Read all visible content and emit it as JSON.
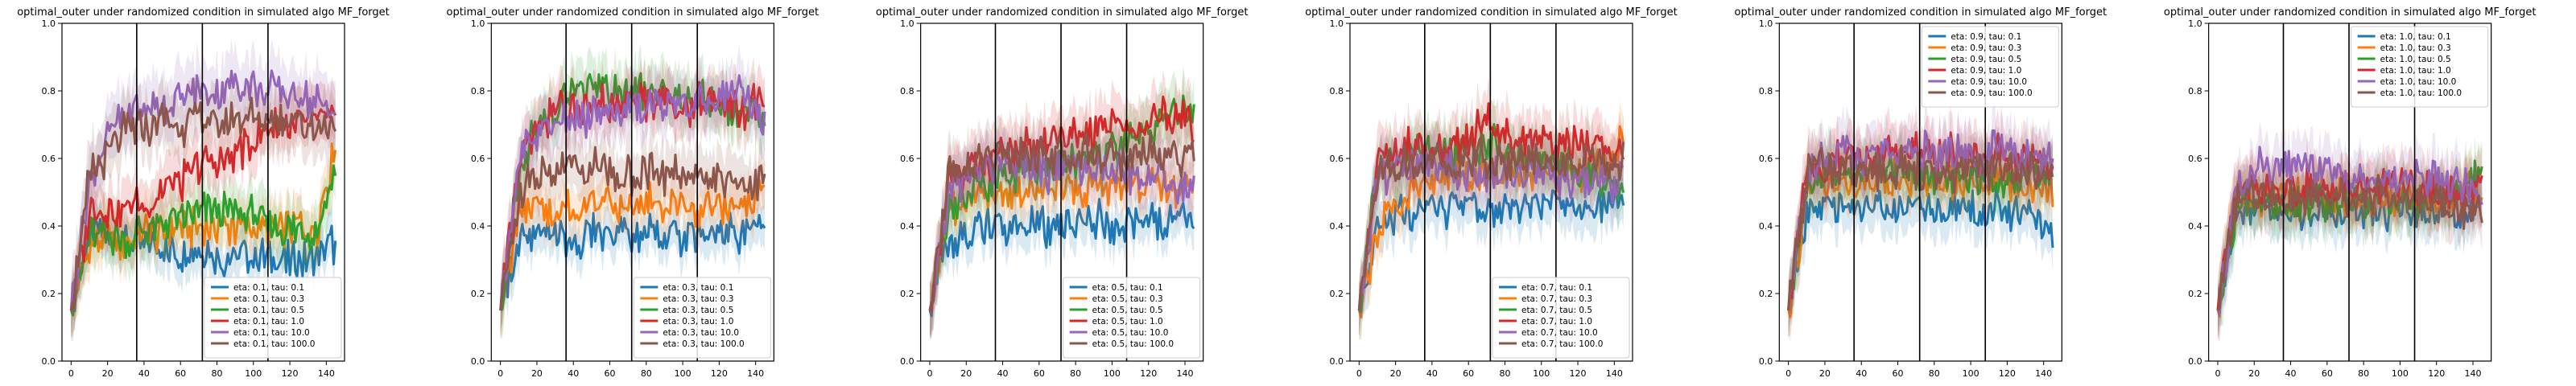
{
  "chart_data": [
    {
      "type": "line",
      "title": "optimal_outer under randomized condition in simulated algo MF_forget",
      "xlim": [
        -5,
        150
      ],
      "ylim": [
        0,
        1
      ],
      "xticks": [
        0,
        20,
        40,
        60,
        80,
        100,
        120,
        140
      ],
      "yticks": [
        0.0,
        0.2,
        0.4,
        0.6,
        0.8,
        1.0
      ],
      "vlines": [
        36,
        72,
        108
      ],
      "legend_loc": "lower-right",
      "series": [
        {
          "name": "eta: 0.1, tau: 0.1",
          "color": "#1f77b4",
          "band": 0.07,
          "values": [
            0.15,
            0.38,
            0.36,
            0.35,
            0.35,
            0.33,
            0.32,
            0.33,
            0.31,
            0.31,
            0.32,
            0.3,
            0.29,
            0.32,
            0.35
          ]
        },
        {
          "name": "eta: 0.1, tau: 0.3",
          "color": "#ff7f0e",
          "band": 0.08,
          "values": [
            0.15,
            0.34,
            0.36,
            0.35,
            0.38,
            0.38,
            0.4,
            0.39,
            0.4,
            0.4,
            0.4,
            0.38,
            0.4,
            0.38,
            0.65
          ]
        },
        {
          "name": "eta: 0.1, tau: 0.5",
          "color": "#2ca02c",
          "band": 0.09,
          "values": [
            0.15,
            0.38,
            0.37,
            0.36,
            0.39,
            0.42,
            0.42,
            0.44,
            0.44,
            0.45,
            0.42,
            0.4,
            0.39,
            0.38,
            0.56
          ]
        },
        {
          "name": "eta: 0.1, tau: 1.0",
          "color": "#d62728",
          "band": 0.09,
          "values": [
            0.15,
            0.44,
            0.45,
            0.45,
            0.46,
            0.52,
            0.54,
            0.58,
            0.6,
            0.63,
            0.66,
            0.7,
            0.7,
            0.72,
            0.72
          ]
        },
        {
          "name": "eta: 0.1, tau: 10.0",
          "color": "#9467bd",
          "band": 0.1,
          "values": [
            0.15,
            0.54,
            0.67,
            0.74,
            0.75,
            0.76,
            0.78,
            0.8,
            0.8,
            0.82,
            0.8,
            0.8,
            0.78,
            0.77,
            0.75
          ]
        },
        {
          "name": "eta: 0.1, tau: 100.0",
          "color": "#8c564b",
          "band": 0.1,
          "values": [
            0.15,
            0.55,
            0.62,
            0.68,
            0.69,
            0.72,
            0.7,
            0.72,
            0.7,
            0.72,
            0.72,
            0.72,
            0.71,
            0.7,
            0.7
          ]
        }
      ]
    },
    {
      "type": "line",
      "title": "optimal_outer under randomized condition in simulated algo MF_forget",
      "xlim": [
        -5,
        150
      ],
      "ylim": [
        0,
        1
      ],
      "xticks": [
        0,
        20,
        40,
        60,
        80,
        100,
        120,
        140
      ],
      "yticks": [
        0.0,
        0.2,
        0.4,
        0.6,
        0.8,
        1.0
      ],
      "vlines": [
        36,
        72,
        108
      ],
      "legend_loc": "lower-right",
      "series": [
        {
          "name": "eta: 0.3, tau: 0.1",
          "color": "#1f77b4",
          "band": 0.07,
          "values": [
            0.15,
            0.36,
            0.38,
            0.37,
            0.36,
            0.38,
            0.38,
            0.37,
            0.38,
            0.38,
            0.37,
            0.36,
            0.38,
            0.37,
            0.38
          ]
        },
        {
          "name": "eta: 0.3, tau: 0.3",
          "color": "#ff7f0e",
          "band": 0.08,
          "values": [
            0.15,
            0.44,
            0.46,
            0.45,
            0.44,
            0.47,
            0.46,
            0.46,
            0.47,
            0.47,
            0.46,
            0.45,
            0.46,
            0.47,
            0.5
          ]
        },
        {
          "name": "eta: 0.3, tau: 0.5",
          "color": "#2ca02c",
          "band": 0.09,
          "values": [
            0.15,
            0.58,
            0.7,
            0.76,
            0.8,
            0.82,
            0.8,
            0.79,
            0.8,
            0.78,
            0.77,
            0.78,
            0.76,
            0.74,
            0.72
          ]
        },
        {
          "name": "eta: 0.3, tau: 1.0",
          "color": "#d62728",
          "band": 0.09,
          "values": [
            0.15,
            0.6,
            0.7,
            0.74,
            0.76,
            0.76,
            0.76,
            0.78,
            0.76,
            0.77,
            0.76,
            0.77,
            0.76,
            0.75,
            0.78
          ]
        },
        {
          "name": "eta: 0.3, tau: 10.0",
          "color": "#9467bd",
          "band": 0.09,
          "values": [
            0.15,
            0.62,
            0.68,
            0.7,
            0.71,
            0.72,
            0.73,
            0.74,
            0.75,
            0.76,
            0.76,
            0.77,
            0.78,
            0.79,
            0.72
          ]
        },
        {
          "name": "eta: 0.3, tau: 100.0",
          "color": "#8c564b",
          "band": 0.09,
          "values": [
            0.15,
            0.5,
            0.56,
            0.58,
            0.56,
            0.58,
            0.56,
            0.55,
            0.55,
            0.56,
            0.54,
            0.55,
            0.54,
            0.52,
            0.52
          ]
        }
      ]
    },
    {
      "type": "line",
      "title": "optimal_outer under randomized condition in simulated algo MF_forget",
      "xlim": [
        -5,
        150
      ],
      "ylim": [
        0,
        1
      ],
      "xticks": [
        0,
        20,
        40,
        60,
        80,
        100,
        120,
        140
      ],
      "yticks": [
        0.0,
        0.2,
        0.4,
        0.6,
        0.8,
        1.0
      ],
      "vlines": [
        36,
        72,
        108
      ],
      "legend_loc": "lower-right",
      "series": [
        {
          "name": "eta: 0.5, tau: 0.1",
          "color": "#1f77b4",
          "band": 0.07,
          "values": [
            0.15,
            0.36,
            0.38,
            0.4,
            0.39,
            0.4,
            0.4,
            0.41,
            0.4,
            0.42,
            0.41,
            0.4,
            0.42,
            0.41,
            0.42
          ]
        },
        {
          "name": "eta: 0.5, tau: 0.3",
          "color": "#ff7f0e",
          "band": 0.08,
          "values": [
            0.15,
            0.46,
            0.48,
            0.5,
            0.5,
            0.5,
            0.51,
            0.52,
            0.51,
            0.52,
            0.52,
            0.51,
            0.52,
            0.52,
            0.54
          ]
        },
        {
          "name": "eta: 0.5, tau: 0.5",
          "color": "#2ca02c",
          "band": 0.09,
          "values": [
            0.15,
            0.44,
            0.5,
            0.52,
            0.54,
            0.56,
            0.57,
            0.6,
            0.6,
            0.62,
            0.64,
            0.66,
            0.7,
            0.74,
            0.72
          ]
        },
        {
          "name": "eta: 0.5, tau: 1.0",
          "color": "#d62728",
          "band": 0.09,
          "values": [
            0.15,
            0.54,
            0.58,
            0.6,
            0.62,
            0.64,
            0.64,
            0.66,
            0.68,
            0.7,
            0.7,
            0.7,
            0.72,
            0.72,
            0.7
          ]
        },
        {
          "name": "eta: 0.5, tau: 10.0",
          "color": "#9467bd",
          "band": 0.09,
          "values": [
            0.15,
            0.5,
            0.55,
            0.57,
            0.58,
            0.58,
            0.56,
            0.57,
            0.56,
            0.57,
            0.56,
            0.55,
            0.55,
            0.52,
            0.52
          ]
        },
        {
          "name": "eta: 0.5, tau: 100.0",
          "color": "#8c564b",
          "band": 0.09,
          "values": [
            0.15,
            0.54,
            0.58,
            0.6,
            0.62,
            0.6,
            0.62,
            0.6,
            0.62,
            0.6,
            0.6,
            0.62,
            0.6,
            0.6,
            0.62
          ]
        }
      ]
    },
    {
      "type": "line",
      "title": "optimal_outer under randomized condition in simulated algo MF_forget",
      "xlim": [
        -5,
        150
      ],
      "ylim": [
        0,
        1
      ],
      "xticks": [
        0,
        20,
        40,
        60,
        80,
        100,
        120,
        140
      ],
      "yticks": [
        0.0,
        0.2,
        0.4,
        0.6,
        0.8,
        1.0
      ],
      "vlines": [
        36,
        72,
        108
      ],
      "legend_loc": "lower-right",
      "series": [
        {
          "name": "eta: 0.7, tau: 0.1",
          "color": "#1f77b4",
          "band": 0.08,
          "values": [
            0.15,
            0.42,
            0.44,
            0.45,
            0.44,
            0.46,
            0.46,
            0.45,
            0.46,
            0.47,
            0.46,
            0.45,
            0.46,
            0.47,
            0.48
          ]
        },
        {
          "name": "eta: 0.7, tau: 0.3",
          "color": "#ff7f0e",
          "band": 0.08,
          "values": [
            0.15,
            0.4,
            0.46,
            0.52,
            0.54,
            0.55,
            0.55,
            0.56,
            0.56,
            0.57,
            0.56,
            0.55,
            0.56,
            0.57,
            0.66
          ]
        },
        {
          "name": "eta: 0.7, tau: 0.5",
          "color": "#2ca02c",
          "band": 0.09,
          "values": [
            0.15,
            0.56,
            0.6,
            0.62,
            0.64,
            0.62,
            0.62,
            0.64,
            0.62,
            0.6,
            0.6,
            0.58,
            0.56,
            0.54,
            0.5
          ]
        },
        {
          "name": "eta: 0.7, tau: 1.0",
          "color": "#d62728",
          "band": 0.09,
          "values": [
            0.15,
            0.58,
            0.62,
            0.63,
            0.62,
            0.64,
            0.66,
            0.72,
            0.66,
            0.64,
            0.64,
            0.66,
            0.64,
            0.62,
            0.62
          ]
        },
        {
          "name": "eta: 0.7, tau: 10.0",
          "color": "#9467bd",
          "band": 0.09,
          "values": [
            0.15,
            0.54,
            0.56,
            0.57,
            0.58,
            0.56,
            0.56,
            0.55,
            0.56,
            0.55,
            0.54,
            0.54,
            0.52,
            0.52,
            0.54
          ]
        },
        {
          "name": "eta: 0.7, tau: 100.0",
          "color": "#8c564b",
          "band": 0.09,
          "values": [
            0.15,
            0.56,
            0.58,
            0.58,
            0.6,
            0.58,
            0.6,
            0.6,
            0.58,
            0.6,
            0.59,
            0.58,
            0.6,
            0.58,
            0.6
          ]
        }
      ]
    },
    {
      "type": "line",
      "title": "optimal_outer under randomized condition in simulated algo MF_forget",
      "xlim": [
        -5,
        150
      ],
      "ylim": [
        0,
        1
      ],
      "xticks": [
        0,
        20,
        40,
        60,
        80,
        100,
        120,
        140
      ],
      "yticks": [
        0.0,
        0.2,
        0.4,
        0.6,
        0.8,
        1.0
      ],
      "vlines": [
        36,
        72,
        108
      ],
      "legend_loc": "upper-right",
      "series": [
        {
          "name": "eta: 0.9, tau: 0.1",
          "color": "#1f77b4",
          "band": 0.08,
          "values": [
            0.15,
            0.44,
            0.46,
            0.45,
            0.46,
            0.44,
            0.45,
            0.46,
            0.44,
            0.45,
            0.44,
            0.46,
            0.44,
            0.42,
            0.4
          ]
        },
        {
          "name": "eta: 0.9, tau: 0.3",
          "color": "#ff7f0e",
          "band": 0.08,
          "values": [
            0.15,
            0.5,
            0.52,
            0.52,
            0.53,
            0.52,
            0.54,
            0.52,
            0.53,
            0.52,
            0.53,
            0.54,
            0.52,
            0.52,
            0.5
          ]
        },
        {
          "name": "eta: 0.9, tau: 0.5",
          "color": "#2ca02c",
          "band": 0.09,
          "values": [
            0.15,
            0.54,
            0.56,
            0.55,
            0.56,
            0.55,
            0.56,
            0.54,
            0.56,
            0.55,
            0.56,
            0.55,
            0.54,
            0.55,
            0.54
          ]
        },
        {
          "name": "eta: 0.9, tau: 1.0",
          "color": "#d62728",
          "band": 0.09,
          "values": [
            0.15,
            0.56,
            0.58,
            0.6,
            0.58,
            0.6,
            0.62,
            0.64,
            0.6,
            0.62,
            0.6,
            0.62,
            0.6,
            0.58,
            0.58
          ]
        },
        {
          "name": "eta: 0.9, tau: 10.0",
          "color": "#9467bd",
          "band": 0.09,
          "values": [
            0.15,
            0.58,
            0.6,
            0.62,
            0.6,
            0.62,
            0.6,
            0.62,
            0.61,
            0.62,
            0.6,
            0.62,
            0.6,
            0.58,
            0.6
          ]
        },
        {
          "name": "eta: 0.9, tau: 100.0",
          "color": "#8c564b",
          "band": 0.09,
          "values": [
            0.15,
            0.56,
            0.58,
            0.57,
            0.58,
            0.56,
            0.58,
            0.56,
            0.57,
            0.56,
            0.58,
            0.56,
            0.55,
            0.56,
            0.56
          ]
        }
      ]
    },
    {
      "type": "line",
      "title": "optimal_outer under randomized condition in simulated algo MF_forget",
      "xlim": [
        -5,
        150
      ],
      "ylim": [
        0,
        1
      ],
      "xticks": [
        0,
        20,
        40,
        60,
        80,
        100,
        120,
        140
      ],
      "yticks": [
        0.0,
        0.2,
        0.4,
        0.6,
        0.8,
        1.0
      ],
      "vlines": [
        36,
        72,
        108
      ],
      "legend_loc": "upper-right",
      "series": [
        {
          "name": "eta: 1.0, tau: 0.1",
          "color": "#1f77b4",
          "band": 0.08,
          "values": [
            0.15,
            0.44,
            0.46,
            0.45,
            0.44,
            0.46,
            0.44,
            0.45,
            0.46,
            0.44,
            0.45,
            0.44,
            0.46,
            0.44,
            0.44
          ]
        },
        {
          "name": "eta: 1.0, tau: 0.3",
          "color": "#ff7f0e",
          "band": 0.08,
          "values": [
            0.15,
            0.5,
            0.48,
            0.5,
            0.49,
            0.5,
            0.48,
            0.5,
            0.49,
            0.48,
            0.5,
            0.49,
            0.48,
            0.5,
            0.48
          ]
        },
        {
          "name": "eta: 1.0, tau: 0.5",
          "color": "#2ca02c",
          "band": 0.09,
          "values": [
            0.15,
            0.46,
            0.48,
            0.46,
            0.47,
            0.48,
            0.46,
            0.48,
            0.47,
            0.46,
            0.48,
            0.47,
            0.48,
            0.5,
            0.56
          ]
        },
        {
          "name": "eta: 1.0, tau: 1.0",
          "color": "#d62728",
          "band": 0.09,
          "values": [
            0.15,
            0.5,
            0.52,
            0.5,
            0.51,
            0.52,
            0.5,
            0.52,
            0.5,
            0.51,
            0.52,
            0.5,
            0.51,
            0.5,
            0.5
          ]
        },
        {
          "name": "eta: 1.0, tau: 10.0",
          "color": "#9467bd",
          "band": 0.09,
          "values": [
            0.15,
            0.52,
            0.58,
            0.56,
            0.58,
            0.57,
            0.56,
            0.55,
            0.56,
            0.55,
            0.54,
            0.55,
            0.54,
            0.52,
            0.48
          ]
        },
        {
          "name": "eta: 1.0, tau: 100.0",
          "color": "#8c564b",
          "band": 0.09,
          "values": [
            0.15,
            0.48,
            0.5,
            0.48,
            0.49,
            0.48,
            0.5,
            0.48,
            0.49,
            0.48,
            0.46,
            0.48,
            0.46,
            0.44,
            0.44
          ]
        }
      ]
    }
  ]
}
